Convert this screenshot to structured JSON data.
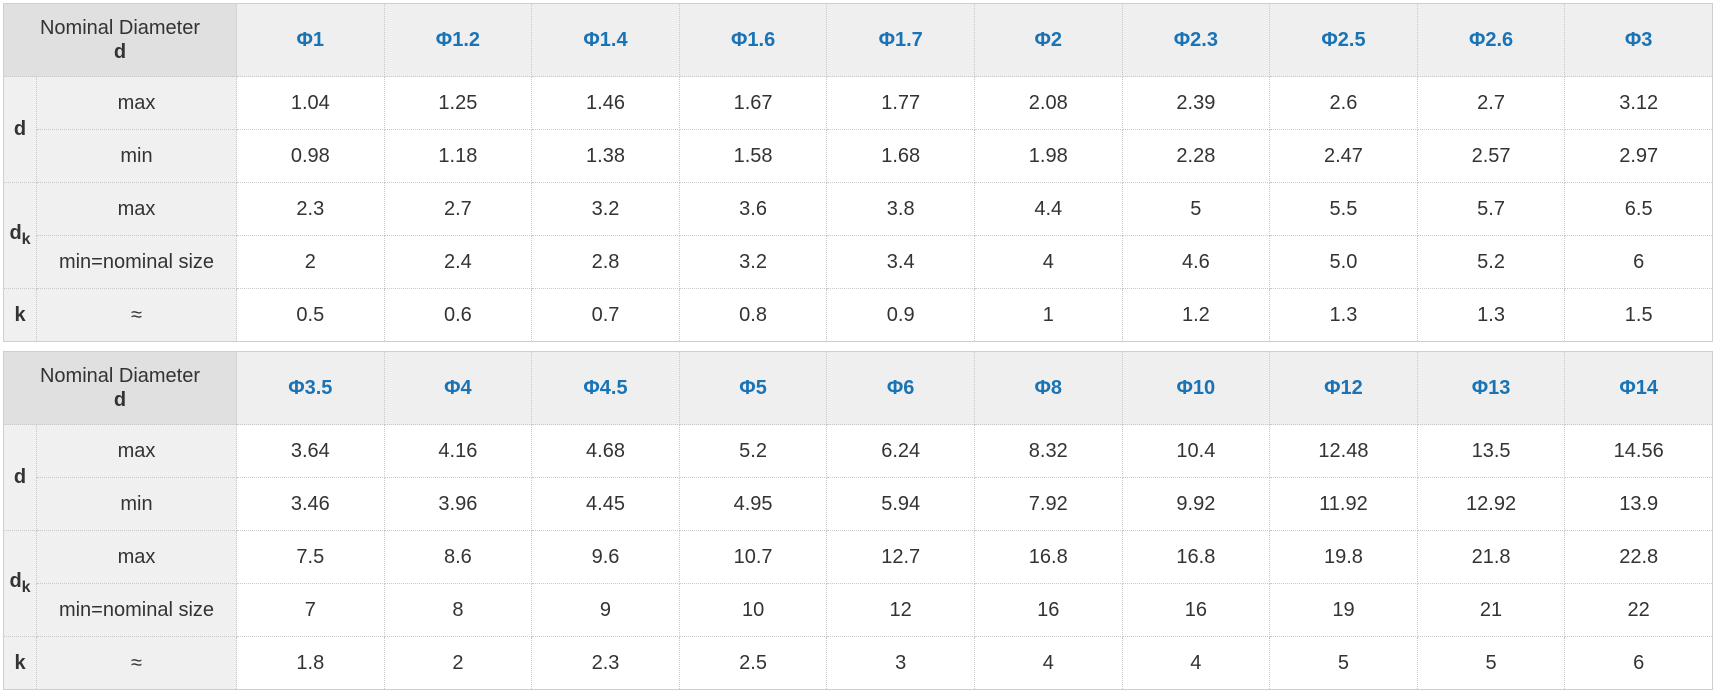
{
  "corner": {
    "line1": "Nominal Diameter",
    "line2": "d"
  },
  "groups": {
    "d": "d",
    "dk_main": "d",
    "dk_sub": "k",
    "k": "k"
  },
  "rowlabels": {
    "max": "max",
    "min": "min",
    "min_nominal": "min=nominal size",
    "approx": "≈"
  },
  "tables": [
    {
      "sizes": [
        "Φ1",
        "Φ1.2",
        "Φ1.4",
        "Φ1.6",
        "Φ1.7",
        "Φ2",
        "Φ2.3",
        "Φ2.5",
        "Φ2.6",
        "Φ3"
      ],
      "d_max": [
        "1.04",
        "1.25",
        "1.46",
        "1.67",
        "1.77",
        "2.08",
        "2.39",
        "2.6",
        "2.7",
        "3.12"
      ],
      "d_min": [
        "0.98",
        "1.18",
        "1.38",
        "1.58",
        "1.68",
        "1.98",
        "2.28",
        "2.47",
        "2.57",
        "2.97"
      ],
      "dk_max": [
        "2.3",
        "2.7",
        "3.2",
        "3.6",
        "3.8",
        "4.4",
        "5",
        "5.5",
        "5.7",
        "6.5"
      ],
      "dk_min": [
        "2",
        "2.4",
        "2.8",
        "3.2",
        "3.4",
        "4",
        "4.6",
        "5.0",
        "5.2",
        "6"
      ],
      "k": [
        "0.5",
        "0.6",
        "0.7",
        "0.8",
        "0.9",
        "1",
        "1.2",
        "1.3",
        "1.3",
        "1.5"
      ]
    },
    {
      "sizes": [
        "Φ3.5",
        "Φ4",
        "Φ4.5",
        "Φ5",
        "Φ6",
        "Φ8",
        "Φ10",
        "Φ12",
        "Φ13",
        "Φ14"
      ],
      "d_max": [
        "3.64",
        "4.16",
        "4.68",
        "5.2",
        "6.24",
        "8.32",
        "10.4",
        "12.48",
        "13.5",
        "14.56"
      ],
      "d_min": [
        "3.46",
        "3.96",
        "4.45",
        "4.95",
        "5.94",
        "7.92",
        "9.92",
        "11.92",
        "12.92",
        "13.9"
      ],
      "dk_max": [
        "7.5",
        "8.6",
        "9.6",
        "10.7",
        "12.7",
        "16.8",
        "16.8",
        "19.8",
        "21.8",
        "22.8"
      ],
      "dk_min": [
        "7",
        "8",
        "9",
        "10",
        "12",
        "16",
        "16",
        "19",
        "21",
        "22"
      ],
      "k": [
        "1.8",
        "2",
        "2.3",
        "2.5",
        "3",
        "4",
        "4",
        "5",
        "5",
        "6"
      ]
    }
  ]
}
